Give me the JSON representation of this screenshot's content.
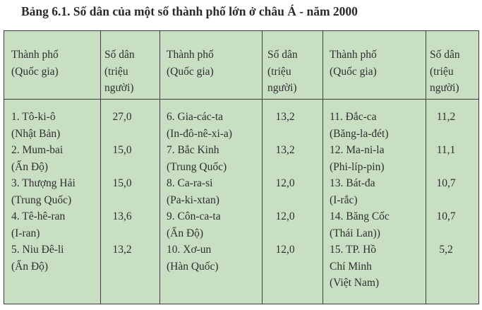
{
  "title": "Bảng 6.1. Số dân của một số thành phố lớn ở châu Á - năm 2000",
  "headers": {
    "city": "Thành phố\n(Quốc gia)",
    "pop": "Số dân\n(triệu\nngười)"
  },
  "columns": [
    {
      "cities": "1. Tô-ki-ô\n(Nhật Bản)\n2. Mum-bai\n(Ấn Độ)\n3. Thượng Hải\n(Trung Quốc)\n4. Tê-hê-ran\n(I-ran)\n5. Niu Đê-li\n(Ấn Độ)",
      "values": "27,0\n\n15,0\n\n15,0\n\n13,6\n\n13,2"
    },
    {
      "cities": "6. Gia-các-ta\n(In-đô-nê-xi-a)\n7. Bắc Kinh\n(Trung Quốc)\n8. Ca-ra-si\n(Pa-ki-xtan)\n9. Côn-ca-ta\n(Ấn Độ)\n10. Xơ-un\n(Hàn Quốc)",
      "values": "13,2\n\n13,2\n\n12,0\n\n12,0\n\n12,0"
    },
    {
      "cities": "11. Đắc-ca\n(Băng-la-đét)\n12. Ma-ni-la\n(Phi-líp-pin)\n13. Bát-đa\n(I-rắc)\n14. Băng Cốc\n(Thái Lan))\n15. TP. Hồ\nChí Minh\n(Việt Nam)",
      "values": "11,2\n\n11,1\n\n10,7\n\n10,7\n\n5,2"
    }
  ]
}
